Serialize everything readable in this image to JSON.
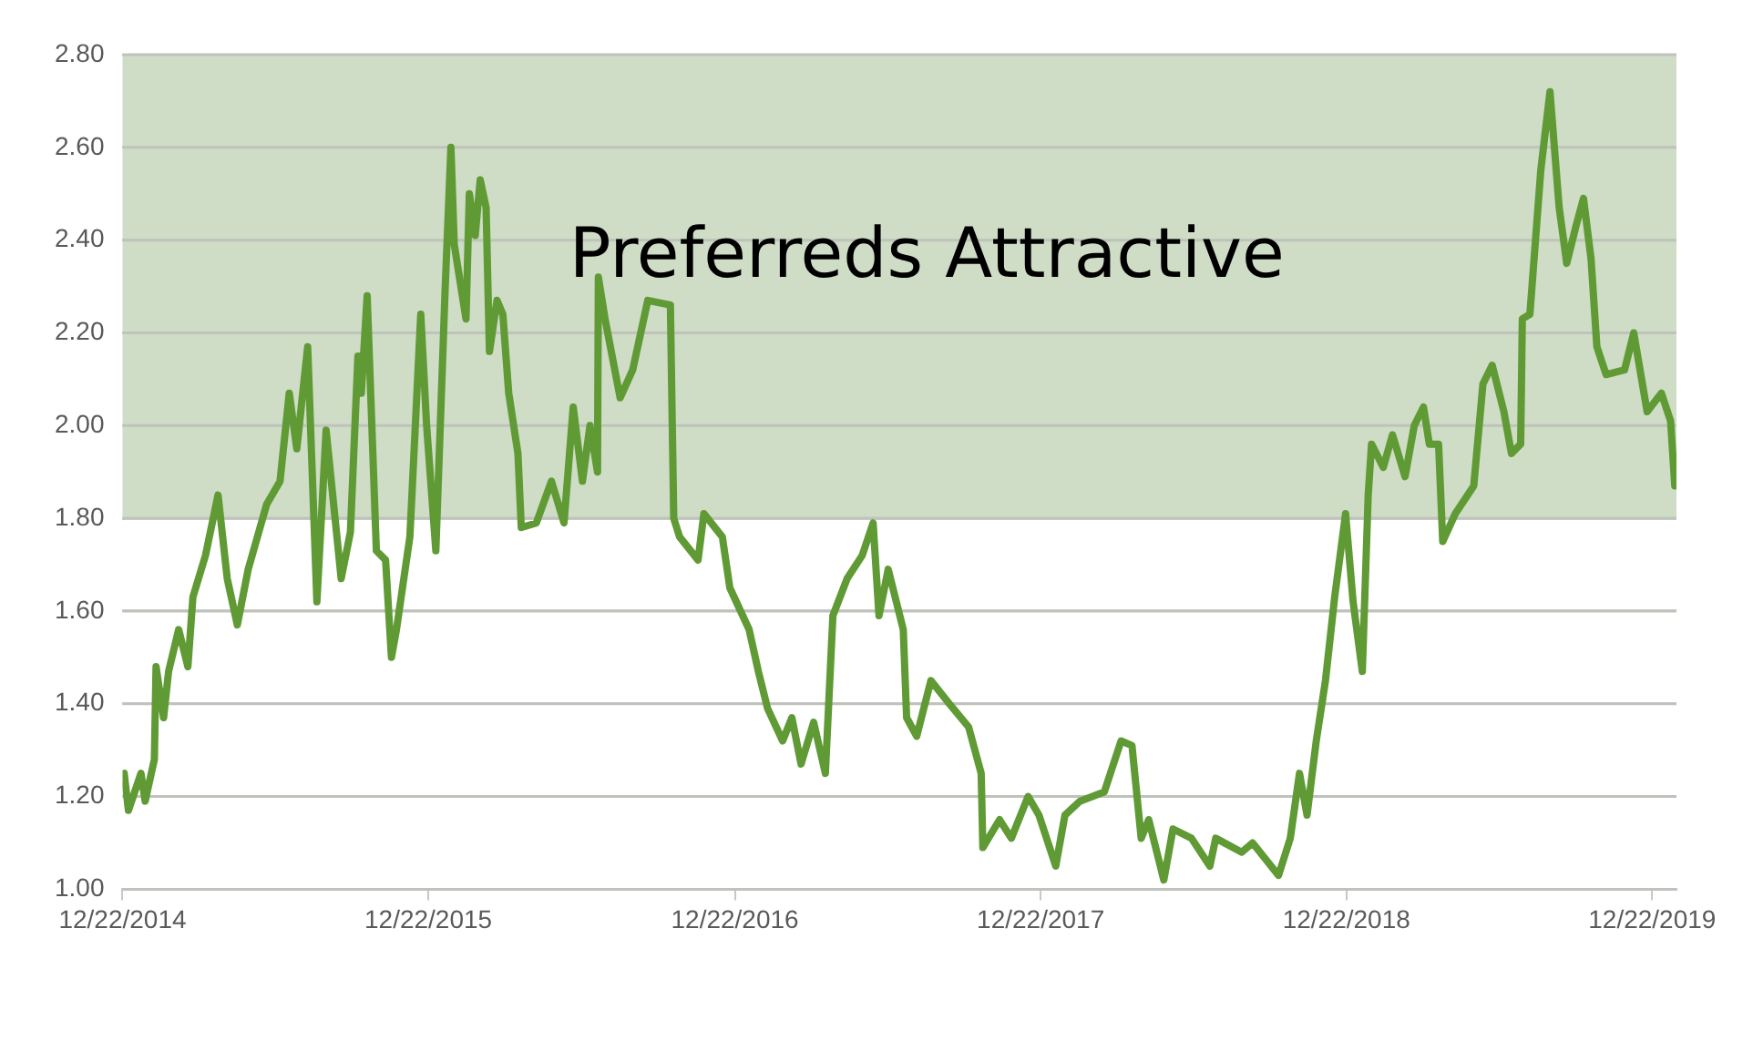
{
  "chart_data": {
    "type": "line",
    "x": [
      "2014-12-24",
      "2014-12-29",
      "2015-01-13",
      "2015-01-18",
      "2015-01-29",
      "2015-01-31",
      "2015-02-09",
      "2015-02-15",
      "2015-02-27",
      "2015-03-10",
      "2015-03-16",
      "2015-03-31",
      "2015-04-15",
      "2015-04-26",
      "2015-05-08",
      "2015-05-21",
      "2015-06-12",
      "2015-06-28",
      "2015-07-09",
      "2015-07-18",
      "2015-07-31",
      "2015-08-11",
      "2015-08-22",
      "2015-09-09",
      "2015-09-20",
      "2015-09-29",
      "2015-10-03",
      "2015-10-10",
      "2015-10-21",
      "2015-11-01",
      "2015-11-08",
      "2015-11-14",
      "2015-11-30",
      "2015-12-13",
      "2015-12-20",
      "2015-12-31",
      "2016-01-11",
      "2016-01-18",
      "2016-01-22",
      "2016-02-05",
      "2016-02-09",
      "2016-02-16",
      "2016-02-22",
      "2016-02-29",
      "2016-03-04",
      "2016-03-13",
      "2016-03-20",
      "2016-03-27",
      "2016-04-07",
      "2016-04-11",
      "2016-04-29",
      "2016-05-17",
      "2016-06-01",
      "2016-06-12",
      "2016-06-23",
      "2016-07-02",
      "2016-07-11",
      "2016-07-12",
      "2016-07-20",
      "2016-08-07",
      "2016-08-22",
      "2016-09-09",
      "2016-10-06",
      "2016-10-10",
      "2016-10-17",
      "2016-11-08",
      "2016-11-15",
      "2016-12-07",
      "2016-12-16",
      "2017-01-08",
      "2017-01-19",
      "2017-01-30",
      "2017-02-17",
      "2017-02-28",
      "2017-03-11",
      "2017-03-26",
      "2017-04-09",
      "2017-04-18",
      "2017-05-05",
      "2017-05-23",
      "2017-06-05",
      "2017-06-12",
      "2017-06-23",
      "2017-07-11",
      "2017-07-15",
      "2017-07-27",
      "2017-08-13",
      "2017-09-04",
      "2017-09-27",
      "2017-10-12",
      "2017-10-14",
      "2017-11-03",
      "2017-11-17",
      "2017-12-07",
      "2017-12-20",
      "2018-01-09",
      "2018-01-20",
      "2018-02-07",
      "2018-03-08",
      "2018-03-28",
      "2018-04-10",
      "2018-04-21",
      "2018-04-30",
      "2018-05-18",
      "2018-05-29",
      "2018-06-20",
      "2018-07-12",
      "2018-07-19",
      "2018-08-19",
      "2018-09-01",
      "2018-10-02",
      "2018-10-16",
      "2018-10-27",
      "2018-11-05",
      "2018-11-16",
      "2018-11-27",
      "2018-12-08",
      "2018-12-21",
      "2018-12-30",
      "2019-01-10",
      "2019-01-17",
      "2019-01-21",
      "2019-02-04",
      "2019-02-15",
      "2019-03-02",
      "2019-03-13",
      "2019-03-24",
      "2019-03-31",
      "2019-04-11",
      "2019-04-16",
      "2019-05-01",
      "2019-05-23",
      "2019-06-03",
      "2019-06-14",
      "2019-06-28",
      "2019-07-07",
      "2019-07-18",
      "2019-07-20",
      "2019-07-29",
      "2019-08-11",
      "2019-08-22",
      "2019-09-02",
      "2019-09-11",
      "2019-09-22",
      "2019-10-01",
      "2019-10-10",
      "2019-10-17",
      "2019-10-28",
      "2019-11-19",
      "2019-11-30",
      "2019-12-16",
      "2020-01-02",
      "2020-01-13",
      "2020-01-18"
    ],
    "series": [
      {
        "color": "#5f9a34",
        "values": [
          1.25,
          1.17,
          1.25,
          1.19,
          1.28,
          1.48,
          1.37,
          1.47,
          1.56,
          1.48,
          1.63,
          1.72,
          1.85,
          1.67,
          1.57,
          1.69,
          1.83,
          1.88,
          2.07,
          1.95,
          2.17,
          1.62,
          1.99,
          1.67,
          1.77,
          2.15,
          2.07,
          2.28,
          1.73,
          1.71,
          1.5,
          1.56,
          1.76,
          2.24,
          2.0,
          1.73,
          2.29,
          2.6,
          2.39,
          2.23,
          2.5,
          2.41,
          2.53,
          2.47,
          2.16,
          2.27,
          2.24,
          2.07,
          1.94,
          1.78,
          1.79,
          1.88,
          1.79,
          2.04,
          1.88,
          2.0,
          1.9,
          2.32,
          2.23,
          2.06,
          2.12,
          2.27,
          2.26,
          1.8,
          1.76,
          1.71,
          1.81,
          1.76,
          1.65,
          1.56,
          1.47,
          1.39,
          1.32,
          1.37,
          1.27,
          1.36,
          1.25,
          1.59,
          1.67,
          1.72,
          1.79,
          1.59,
          1.69,
          1.56,
          1.37,
          1.33,
          1.45,
          1.4,
          1.35,
          1.25,
          1.09,
          1.15,
          1.11,
          1.2,
          1.16,
          1.05,
          1.16,
          1.19,
          1.21,
          1.32,
          1.31,
          1.11,
          1.15,
          1.02,
          1.13,
          1.11,
          1.05,
          1.11,
          1.08,
          1.1,
          1.03,
          1.11,
          1.25,
          1.16,
          1.32,
          1.45,
          1.63,
          1.81,
          1.62,
          1.47,
          1.85,
          1.96,
          1.91,
          1.98,
          1.89,
          2.0,
          2.04,
          1.96,
          1.96,
          1.75,
          1.81,
          1.87,
          2.09,
          2.13,
          2.03,
          1.94,
          1.96,
          2.23,
          2.24,
          2.55,
          2.72,
          2.47,
          2.35,
          2.43,
          2.49,
          2.36,
          2.17,
          2.11,
          2.12,
          2.2,
          2.03,
          2.07,
          2.01,
          1.87
        ]
      }
    ],
    "xlim": [
      "2014-12-22",
      "2020-01-20"
    ],
    "xticks": [
      {
        "value": "2014-12-22",
        "label": "12/22/2014"
      },
      {
        "value": "2015-12-22",
        "label": "12/22/2015"
      },
      {
        "value": "2016-12-22",
        "label": "12/22/2016"
      },
      {
        "value": "2017-12-22",
        "label": "12/22/2017"
      },
      {
        "value": "2018-12-22",
        "label": "12/22/2018"
      },
      {
        "value": "2019-12-22",
        "label": "12/22/2019"
      }
    ],
    "ylim": [
      1.0,
      2.8
    ],
    "yticks": [
      {
        "value": 1.0,
        "label": "1.00"
      },
      {
        "value": 1.2,
        "label": "1.20"
      },
      {
        "value": 1.4,
        "label": "1.40"
      },
      {
        "value": 1.6,
        "label": "1.60"
      },
      {
        "value": 1.8,
        "label": "1.80"
      },
      {
        "value": 2.0,
        "label": "2.00"
      },
      {
        "value": 2.2,
        "label": "2.20"
      },
      {
        "value": 2.4,
        "label": "2.40"
      },
      {
        "value": 2.6,
        "label": "2.60"
      },
      {
        "value": 2.8,
        "label": "2.80"
      }
    ],
    "bands": [
      {
        "axis": "y",
        "from": 1.8,
        "to": 2.8,
        "label": "Preferreds Attractive",
        "color": "#cfdcc6"
      }
    ],
    "grid": "y",
    "legend": false,
    "marker": "none",
    "line_style": "solid"
  }
}
